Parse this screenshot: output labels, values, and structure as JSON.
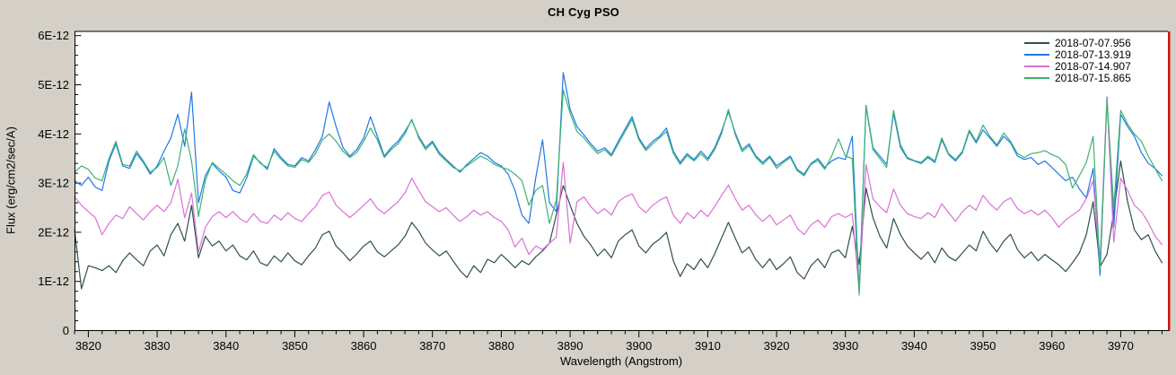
{
  "title": "CH Cyg   PSO",
  "colors": {
    "background": "#D4D0C8",
    "plot_background": "#FFFFFF",
    "axis": "#000000",
    "right_border_red": "#C81414"
  },
  "legend": [
    {
      "label": "2018-07-07.956",
      "color": "#2F4F4F"
    },
    {
      "label": "2018-07-13.919",
      "color": "#1E78E8"
    },
    {
      "label": "2018-07-14.907",
      "color": "#DA70D6"
    },
    {
      "label": "2018-07-15.865",
      "color": "#3CB371"
    }
  ],
  "chart_data": {
    "type": "line",
    "title": "CH Cyg   PSO",
    "xlabel": "Wavelength (Angstrom)",
    "ylabel": "Flux (erg/cm2/sec/A)",
    "x_units": "Angstrom",
    "y_units": "erg/cm2/sec/A",
    "y_value_scale": 1e-12,
    "xlim": [
      3818,
      3976.8
    ],
    "ylim_units_of_1e-12": [
      0,
      6.08
    ],
    "x_major_ticks": [
      3820,
      3830,
      3840,
      3850,
      3860,
      3870,
      3880,
      3890,
      3900,
      3910,
      3920,
      3930,
      3940,
      3950,
      3960,
      3970
    ],
    "x_minor_step": 2,
    "y_major_ticks": [
      0,
      1,
      2,
      3,
      4,
      5,
      6
    ],
    "y_tick_labels": [
      "0",
      "1E-12",
      "2E-12",
      "3E-12",
      "4E-12",
      "5E-12",
      "6E-12"
    ],
    "y_minor_step": 0.2,
    "grid": false,
    "legend_position": "top-right-inside",
    "x_start": 3818,
    "x_step": 1,
    "series": [
      {
        "name": "2018-07-07.956",
        "color": "#2F4F4F",
        "values": [
          2.05,
          0.85,
          1.32,
          1.28,
          1.22,
          1.32,
          1.18,
          1.42,
          1.58,
          1.44,
          1.32,
          1.62,
          1.74,
          1.52,
          1.95,
          2.18,
          1.82,
          2.55,
          1.48,
          1.92,
          1.72,
          1.82,
          1.62,
          1.74,
          1.52,
          1.44,
          1.62,
          1.38,
          1.32,
          1.52,
          1.4,
          1.58,
          1.42,
          1.34,
          1.52,
          1.68,
          1.95,
          2.02,
          1.72,
          1.58,
          1.42,
          1.56,
          1.72,
          1.82,
          1.6,
          1.5,
          1.62,
          1.74,
          1.92,
          2.2,
          2.02,
          1.78,
          1.64,
          1.52,
          1.62,
          1.42,
          1.22,
          1.08,
          1.32,
          1.18,
          1.45,
          1.38,
          1.55,
          1.42,
          1.28,
          1.42,
          1.34,
          1.5,
          1.62,
          1.78,
          2.35,
          2.95,
          2.55,
          2.18,
          1.92,
          1.74,
          1.52,
          1.66,
          1.48,
          1.82,
          1.95,
          2.05,
          1.72,
          1.58,
          1.76,
          1.86,
          2.0,
          1.42,
          1.1,
          1.36,
          1.24,
          1.46,
          1.28,
          1.56,
          1.88,
          2.2,
          1.88,
          1.58,
          1.7,
          1.44,
          1.28,
          1.46,
          1.24,
          1.36,
          1.5,
          1.18,
          1.05,
          1.32,
          1.46,
          1.28,
          1.58,
          1.64,
          1.48,
          2.12,
          1.35,
          2.9,
          2.3,
          1.92,
          1.68,
          2.28,
          1.95,
          1.72,
          1.58,
          1.45,
          1.6,
          1.38,
          1.68,
          1.5,
          1.42,
          1.58,
          1.74,
          1.62,
          2.02,
          1.78,
          1.6,
          1.82,
          1.96,
          1.65,
          1.48,
          1.6,
          1.42,
          1.55,
          1.44,
          1.34,
          1.2,
          1.38,
          1.58,
          1.95,
          2.62,
          1.3,
          1.55,
          2.4,
          3.45,
          2.62,
          2.05,
          1.85,
          1.95,
          1.62,
          1.38
        ]
      },
      {
        "name": "2018-07-13.919",
        "color": "#1E78E8",
        "values": [
          3.05,
          2.95,
          3.12,
          2.92,
          2.85,
          3.45,
          3.8,
          3.35,
          3.3,
          3.6,
          3.42,
          3.18,
          3.35,
          3.65,
          3.92,
          4.4,
          3.75,
          4.85,
          2.6,
          3.15,
          3.4,
          3.25,
          3.12,
          2.85,
          2.8,
          3.1,
          3.55,
          3.42,
          3.28,
          3.7,
          3.52,
          3.38,
          3.35,
          3.52,
          3.45,
          3.68,
          3.95,
          4.65,
          4.15,
          3.72,
          3.55,
          3.68,
          3.92,
          4.35,
          3.95,
          3.55,
          3.72,
          3.85,
          4.05,
          4.28,
          3.95,
          3.72,
          3.85,
          3.62,
          3.48,
          3.35,
          3.22,
          3.38,
          3.5,
          3.62,
          3.55,
          3.42,
          3.35,
          3.18,
          2.85,
          2.35,
          2.18,
          3.1,
          3.88,
          2.6,
          2.42,
          5.25,
          4.5,
          4.15,
          3.98,
          3.8,
          3.65,
          3.72,
          3.58,
          3.85,
          4.1,
          4.35,
          3.92,
          3.7,
          3.85,
          3.95,
          4.12,
          3.65,
          3.42,
          3.6,
          3.48,
          3.65,
          3.5,
          3.72,
          4.05,
          4.45,
          4.02,
          3.68,
          3.8,
          3.55,
          3.42,
          3.55,
          3.35,
          3.45,
          3.55,
          3.28,
          3.18,
          3.4,
          3.5,
          3.32,
          3.45,
          3.52,
          3.48,
          3.95,
          0.78,
          4.58,
          3.72,
          3.55,
          3.38,
          4.42,
          3.72,
          3.5,
          3.45,
          3.4,
          3.52,
          3.42,
          3.88,
          3.58,
          3.45,
          3.62,
          4.05,
          3.82,
          4.08,
          3.92,
          3.75,
          3.95,
          3.82,
          3.55,
          3.48,
          3.52,
          3.38,
          3.45,
          3.32,
          3.18,
          3.05,
          3.12,
          2.88,
          2.7,
          3.3,
          1.12,
          4.75,
          2.1,
          4.4,
          4.15,
          3.95,
          3.62,
          3.4,
          3.3,
          3.15
        ]
      },
      {
        "name": "2018-07-14.907",
        "color": "#DA70D6",
        "values": [
          2.72,
          2.55,
          2.42,
          2.3,
          1.95,
          2.18,
          2.35,
          2.28,
          2.52,
          2.38,
          2.25,
          2.42,
          2.55,
          2.42,
          2.6,
          3.08,
          2.3,
          2.8,
          1.6,
          2.1,
          2.32,
          2.42,
          2.3,
          2.42,
          2.28,
          2.2,
          2.38,
          2.22,
          2.18,
          2.35,
          2.25,
          2.4,
          2.28,
          2.22,
          2.38,
          2.52,
          2.75,
          2.82,
          2.55,
          2.42,
          2.3,
          2.42,
          2.55,
          2.68,
          2.48,
          2.38,
          2.5,
          2.62,
          2.8,
          3.1,
          2.85,
          2.62,
          2.52,
          2.42,
          2.5,
          2.35,
          2.22,
          2.32,
          2.45,
          2.35,
          2.42,
          2.3,
          2.22,
          2.05,
          1.7,
          1.88,
          1.55,
          1.72,
          1.65,
          1.78,
          1.9,
          3.42,
          1.78,
          2.62,
          2.72,
          2.52,
          2.38,
          2.48,
          2.35,
          2.62,
          2.72,
          2.78,
          2.52,
          2.4,
          2.55,
          2.65,
          2.72,
          2.35,
          2.18,
          2.4,
          2.28,
          2.45,
          2.32,
          2.52,
          2.75,
          2.96,
          2.68,
          2.45,
          2.55,
          2.35,
          2.22,
          2.35,
          2.15,
          2.25,
          2.35,
          2.08,
          1.95,
          2.15,
          2.25,
          2.1,
          2.32,
          2.38,
          2.3,
          2.38,
          0.8,
          3.38,
          2.68,
          2.52,
          2.4,
          2.88,
          2.55,
          2.38,
          2.32,
          2.28,
          2.4,
          2.3,
          2.58,
          2.4,
          2.22,
          2.42,
          2.55,
          2.45,
          2.75,
          2.58,
          2.45,
          2.62,
          2.7,
          2.48,
          2.38,
          2.45,
          2.35,
          2.45,
          2.3,
          2.1,
          2.25,
          2.35,
          2.45,
          2.68,
          3.05,
          1.42,
          4.72,
          1.8,
          3.1,
          2.85,
          2.55,
          2.42,
          2.2,
          1.92,
          1.75
        ]
      },
      {
        "name": "2018-07-15.865",
        "color": "#3CB371",
        "values": [
          3.22,
          3.35,
          3.28,
          3.1,
          3.05,
          3.5,
          3.85,
          3.38,
          3.35,
          3.65,
          3.45,
          3.22,
          3.32,
          3.52,
          2.95,
          3.35,
          4.1,
          3.45,
          2.32,
          3.05,
          3.42,
          3.3,
          3.18,
          3.05,
          2.95,
          3.18,
          3.58,
          3.4,
          3.32,
          3.65,
          3.48,
          3.35,
          3.32,
          3.48,
          3.42,
          3.6,
          3.88,
          4.0,
          3.85,
          3.65,
          3.52,
          3.62,
          3.85,
          4.12,
          3.88,
          3.52,
          3.68,
          3.8,
          4.0,
          4.3,
          3.92,
          3.68,
          3.82,
          3.58,
          3.45,
          3.32,
          3.25,
          3.35,
          3.45,
          3.55,
          3.48,
          3.38,
          3.32,
          3.28,
          3.18,
          3.05,
          2.55,
          2.85,
          2.95,
          2.18,
          2.65,
          4.9,
          4.42,
          4.05,
          3.92,
          3.75,
          3.6,
          3.68,
          3.55,
          3.8,
          4.05,
          4.3,
          3.88,
          3.66,
          3.8,
          3.92,
          4.05,
          3.6,
          3.38,
          3.56,
          3.45,
          3.6,
          3.46,
          3.68,
          4.0,
          4.5,
          3.98,
          3.64,
          3.76,
          3.52,
          3.38,
          3.52,
          3.3,
          3.42,
          3.52,
          3.25,
          3.15,
          3.38,
          3.46,
          3.28,
          3.55,
          3.9,
          3.55,
          3.5,
          0.72,
          4.55,
          3.68,
          3.5,
          3.32,
          4.48,
          3.78,
          3.52,
          3.46,
          3.42,
          3.55,
          3.45,
          3.92,
          3.6,
          3.48,
          3.65,
          4.08,
          3.85,
          4.18,
          3.95,
          3.78,
          4.02,
          3.85,
          3.6,
          3.52,
          3.6,
          3.62,
          3.66,
          3.58,
          3.52,
          3.38,
          2.9,
          3.15,
          3.42,
          3.95,
          1.25,
          4.7,
          2.5,
          4.48,
          4.2,
          4.0,
          3.85,
          3.55,
          3.3,
          3.05
        ]
      }
    ]
  }
}
